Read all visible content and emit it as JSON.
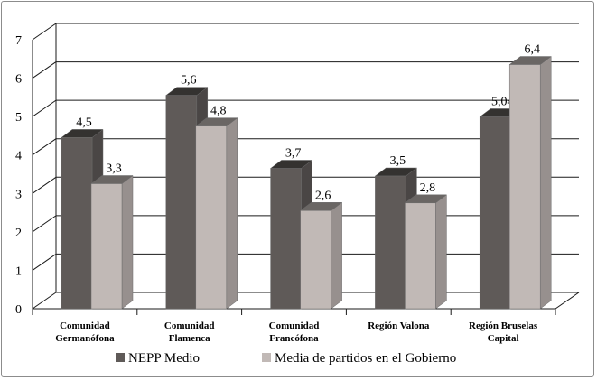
{
  "chart_data": {
    "type": "bar",
    "categories": [
      [
        "Comunidad",
        "Germanófona"
      ],
      [
        "Comunidad",
        "Flamenca"
      ],
      [
        "Comunidad",
        "Francófona"
      ],
      [
        "Región Valona"
      ],
      [
        "Región Bruselas",
        "Capital"
      ]
    ],
    "series": [
      {
        "name": "NEPP Medio",
        "values": [
          4.5,
          5.6,
          3.7,
          3.5,
          5.04
        ],
        "labels": [
          "4,5",
          "5,6",
          "3,7",
          "3,5",
          "5,04"
        ],
        "color": "#5f5a58"
      },
      {
        "name": "Media de partidos en el Gobierno",
        "values": [
          3.3,
          4.8,
          2.6,
          2.8,
          6.4
        ],
        "labels": [
          "3,3",
          "4,8",
          "2,6",
          "2,8",
          "6,4"
        ],
        "color": "#c1b9b6"
      }
    ],
    "yticks": [
      "0",
      "1",
      "2",
      "3",
      "4",
      "5",
      "6",
      "7"
    ],
    "ylim": [
      0,
      7
    ],
    "grid": true,
    "legend_position": "bottom",
    "title": "",
    "xlabel": "",
    "ylabel": ""
  }
}
